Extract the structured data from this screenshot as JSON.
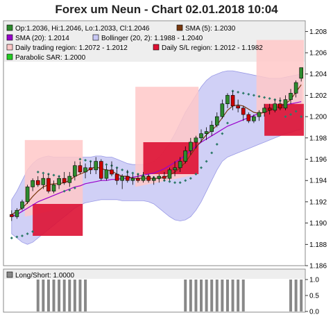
{
  "title": "Forex um Neun - Chart 02.01.2018 10:04",
  "legend": {
    "ohlc": "Op:1.2036, Hi:1.2046, Lo:1.2033, Cl:1.2046",
    "sma5": "SMA (5): 1.2030",
    "sma20": "SMA (20): 1.2014",
    "bollinger": "Bollinger (20, 2): 1.1988 - 1.2040",
    "trading_region": "Daily trading region: 1.2072 - 1.2012",
    "sl_region": "Daily S/L region: 1.2012 - 1.1982",
    "sar": "Parabolic SAR: 1.2000",
    "longshort": "Long/Short: 1.0000"
  },
  "colors": {
    "up": "#2e8b2e",
    "down": "#cc0000",
    "sma5": "#7a3a10",
    "sma20": "#9900cc",
    "bollinger_fill": "#c8c8f5",
    "trading_region": "#ffc8c8",
    "sl_region": "#dd1133",
    "sar": "#2e7a6a",
    "longshort": "#888888",
    "plot_bg": "#eeeeee"
  },
  "chart_data": [
    {
      "type": "candlestick",
      "ylim": [
        1.186,
        1.209
      ],
      "yticks": [
        "1.186",
        "1.188",
        "1.190",
        "1.192",
        "1.194",
        "1.196",
        "1.198",
        "1.200",
        "1.202",
        "1.204",
        "1.206",
        "1.208"
      ],
      "candles": [
        [
          1.1908,
          1.1912,
          1.1902,
          1.1906
        ],
        [
          1.1906,
          1.1914,
          1.1904,
          1.1912
        ],
        [
          1.1914,
          1.1922,
          1.1912,
          1.192
        ],
        [
          1.192,
          1.1936,
          1.1918,
          1.1934
        ],
        [
          1.1934,
          1.1942,
          1.193,
          1.194
        ],
        [
          1.194,
          1.1944,
          1.1934,
          1.1936
        ],
        [
          1.1936,
          1.1946,
          1.1932,
          1.1942
        ],
        [
          1.1942,
          1.1946,
          1.1928,
          1.193
        ],
        [
          1.193,
          1.194,
          1.1928,
          1.1936
        ],
        [
          1.1936,
          1.1944,
          1.1932,
          1.1942
        ],
        [
          1.1942,
          1.1948,
          1.1936,
          1.1938
        ],
        [
          1.1938,
          1.1948,
          1.1934,
          1.1944
        ],
        [
          1.1944,
          1.1958,
          1.194,
          1.1954
        ],
        [
          1.1954,
          1.1958,
          1.1946,
          1.1948
        ],
        [
          1.1948,
          1.1956,
          1.1942,
          1.1952
        ],
        [
          1.1952,
          1.1958,
          1.1946,
          1.195
        ],
        [
          1.195,
          1.1962,
          1.1946,
          1.1958
        ],
        [
          1.1958,
          1.196,
          1.194,
          1.1942
        ],
        [
          1.1942,
          1.1954,
          1.194,
          1.195
        ],
        [
          1.195,
          1.1958,
          1.1944,
          1.1946
        ],
        [
          1.1946,
          1.1952,
          1.1936,
          1.194
        ],
        [
          1.194,
          1.1946,
          1.1932,
          1.1944
        ],
        [
          1.1944,
          1.195,
          1.1938,
          1.194
        ],
        [
          1.194,
          1.1946,
          1.1936,
          1.1942
        ],
        [
          1.1942,
          1.1946,
          1.1938,
          1.194
        ],
        [
          1.194,
          1.1948,
          1.1938,
          1.1944
        ],
        [
          1.1944,
          1.1946,
          1.1938,
          1.194
        ],
        [
          1.194,
          1.1944,
          1.1936,
          1.1942
        ],
        [
          1.1942,
          1.1946,
          1.1938,
          1.1944
        ],
        [
          1.1944,
          1.1948,
          1.194,
          1.1942
        ],
        [
          1.1942,
          1.1952,
          1.194,
          1.195
        ],
        [
          1.195,
          1.1958,
          1.1944,
          1.1952
        ],
        [
          1.1952,
          1.1962,
          1.1948,
          1.1958
        ],
        [
          1.1958,
          1.1972,
          1.1956,
          1.1968
        ],
        [
          1.1968,
          1.198,
          1.1964,
          1.1976
        ],
        [
          1.1976,
          1.1982,
          1.197,
          1.198
        ],
        [
          1.198,
          1.1988,
          1.1976,
          1.1984
        ],
        [
          1.1984,
          1.199,
          1.1978,
          1.1986
        ],
        [
          1.1986,
          1.1996,
          1.1982,
          1.1992
        ],
        [
          1.1992,
          1.2004,
          1.199,
          1.2
        ],
        [
          1.2,
          1.2016,
          1.1998,
          1.2012
        ],
        [
          1.2012,
          1.2022,
          1.2008,
          1.202
        ],
        [
          1.202,
          1.2024,
          1.2006,
          1.201
        ],
        [
          1.201,
          1.2016,
          1.2004,
          1.2008
        ],
        [
          1.2008,
          1.201,
          1.1996,
          1.2002
        ],
        [
          1.2002,
          1.2004,
          1.1994,
          1.1996
        ],
        [
          1.1996,
          1.2002,
          1.1994,
          1.2
        ],
        [
          1.2,
          1.2006,
          1.1996,
          1.2004
        ],
        [
          1.2004,
          1.2012,
          1.2,
          1.2008
        ],
        [
          1.2008,
          1.2012,
          1.2002,
          1.2006
        ],
        [
          1.2006,
          1.2016,
          1.2004,
          1.2012
        ],
        [
          1.2012,
          1.2018,
          1.2006,
          1.2008
        ],
        [
          1.2008,
          1.202,
          1.2006,
          1.2016
        ],
        [
          1.2016,
          1.2026,
          1.2012,
          1.2022
        ],
        [
          1.2022,
          1.2034,
          1.2018,
          1.2032
        ],
        [
          1.2036,
          1.2046,
          1.2033,
          1.2046
        ]
      ],
      "sma5": [
        1.1908,
        1.1911,
        1.1914,
        1.1919,
        1.1925,
        1.193,
        1.1934,
        1.1936,
        1.1937,
        1.1937,
        1.1938,
        1.194,
        1.1944,
        1.1946,
        1.1948,
        1.1951,
        1.1953,
        1.1951,
        1.195,
        1.1949,
        1.1946,
        1.1944,
        1.1944,
        1.1942,
        1.1942,
        1.1942,
        1.1942,
        1.1942,
        1.1942,
        1.1943,
        1.1945,
        1.1948,
        1.1952,
        1.1957,
        1.1964,
        1.1971,
        1.1977,
        1.1983,
        1.1987,
        1.1992,
        1.1999,
        1.2006,
        1.201,
        1.2011,
        1.201,
        1.2007,
        1.2004,
        1.2003,
        1.2004,
        1.2006,
        1.2008,
        1.201,
        1.2012,
        1.2016,
        1.2023,
        1.203
      ],
      "sma20": [
        1.1906,
        1.1908,
        1.1911,
        1.1914,
        1.1917,
        1.192,
        1.1922,
        1.1924,
        1.1926,
        1.1928,
        1.193,
        1.1932,
        1.1934,
        1.1935,
        1.1937,
        1.1938,
        1.1939,
        1.194,
        1.194,
        1.1941,
        1.1941,
        1.1942,
        1.1942,
        1.1943,
        1.1944,
        1.1945,
        1.1946,
        1.1947,
        1.1949,
        1.1951,
        1.1954,
        1.1957,
        1.196,
        1.1964,
        1.1968,
        1.1972,
        1.1976,
        1.1979,
        1.1982,
        1.1985,
        1.1988,
        1.1991,
        1.1993,
        1.1995,
        1.1997,
        1.1999,
        1.2001,
        1.2003,
        1.2004,
        1.2006,
        1.2008,
        1.201,
        1.2011,
        1.2012,
        1.2013,
        1.2014
      ],
      "bollinger_upper": [
        1.1922,
        1.193,
        1.194,
        1.195,
        1.1956,
        1.196,
        1.1962,
        1.1963,
        1.1962,
        1.1962,
        1.1962,
        1.1962,
        1.1962,
        1.1962,
        1.1962,
        1.1962,
        1.1963,
        1.1963,
        1.1962,
        1.1962,
        1.196,
        1.1958,
        1.1956,
        1.1955,
        1.1955,
        1.1955,
        1.1956,
        1.1958,
        1.1962,
        1.1968,
        1.1975,
        1.1984,
        1.1994,
        1.2004,
        1.2012,
        1.202,
        1.2028,
        1.2034,
        1.2038,
        1.204,
        1.2042,
        1.2043,
        1.2043,
        1.2042,
        1.2041,
        1.204,
        1.2039,
        1.2038,
        1.2037,
        1.2036,
        1.2036,
        1.2036,
        1.2037,
        1.2038,
        1.2039,
        1.204
      ],
      "bollinger_lower": [
        1.189,
        1.1886,
        1.1882,
        1.188,
        1.1882,
        1.1886,
        1.189,
        1.1894,
        1.1898,
        1.1902,
        1.1906,
        1.191,
        1.1914,
        1.1917,
        1.1919,
        1.192,
        1.1921,
        1.1922,
        1.1922,
        1.1922,
        1.1922,
        1.1921,
        1.1921,
        1.1921,
        1.1921,
        1.1921,
        1.192,
        1.1918,
        1.1914,
        1.191,
        1.1906,
        1.1903,
        1.1902,
        1.1903,
        1.1906,
        1.1912,
        1.192,
        1.193,
        1.194,
        1.195,
        1.1958,
        1.1962,
        1.1964,
        1.1966,
        1.1968,
        1.197,
        1.1972,
        1.1974,
        1.1976,
        1.1978,
        1.198,
        1.1982,
        1.1984,
        1.1985,
        1.1987,
        1.1988
      ],
      "sar": [
        1.1886,
        1.1887,
        1.1888,
        1.189,
        1.1892,
        1.1948,
        1.1947,
        1.1946,
        1.1945,
        1.1944,
        1.193,
        1.1931,
        1.1933,
        1.196,
        1.1959,
        1.1958,
        1.1957,
        1.1956,
        1.1955,
        1.1954,
        1.1952,
        1.195,
        1.1948,
        1.1947,
        1.1946,
        1.1945,
        1.1944,
        1.1943,
        1.1942,
        1.194,
        1.1939,
        1.1938,
        1.1938,
        1.194,
        1.1942,
        1.1946,
        1.1952,
        1.1958,
        1.1966,
        1.1974,
        1.1984,
        1.1994,
        1.2024,
        1.2023,
        1.2022,
        1.2021,
        1.202,
        1.2019,
        1.2018,
        1.2017,
        1.2016,
        1.2015,
        1.2,
        1.2002,
        1.2005,
        1.2
      ],
      "trading_regions": [
        {
          "from": 3,
          "to": 13,
          "hi": 1.1978,
          "lo": 1.1918
        },
        {
          "from": 24,
          "to": 35,
          "hi": 1.2028,
          "lo": 1.1946
        },
        {
          "from": 47,
          "to": 55,
          "hi": 1.2072,
          "lo": 1.2012
        }
      ],
      "sl_regions": [
        {
          "from": 3,
          "to": 13,
          "hi": 1.1918,
          "lo": 1.1888
        },
        {
          "from": 24,
          "to": 35,
          "hi": 1.1976,
          "lo": 1.1946
        },
        {
          "from": 47,
          "to": 55,
          "hi": 1.2012,
          "lo": 1.1982
        }
      ]
    },
    {
      "type": "bar",
      "ylim": [
        0.0,
        1.0
      ],
      "yticks": [
        "0.0",
        "0.5",
        "1.0"
      ],
      "values": [
        0,
        0,
        0,
        0,
        0,
        1,
        1,
        1,
        1,
        1,
        1,
        1,
        1,
        1,
        1,
        0,
        0,
        0,
        0,
        0,
        0,
        0,
        0,
        0,
        0,
        0,
        0,
        0,
        0,
        0,
        0,
        0,
        0,
        1,
        1,
        1,
        1,
        1,
        1,
        1,
        1,
        1,
        1,
        1,
        1,
        0,
        0,
        0,
        0,
        0,
        0,
        0,
        0,
        1,
        1,
        1
      ]
    }
  ]
}
